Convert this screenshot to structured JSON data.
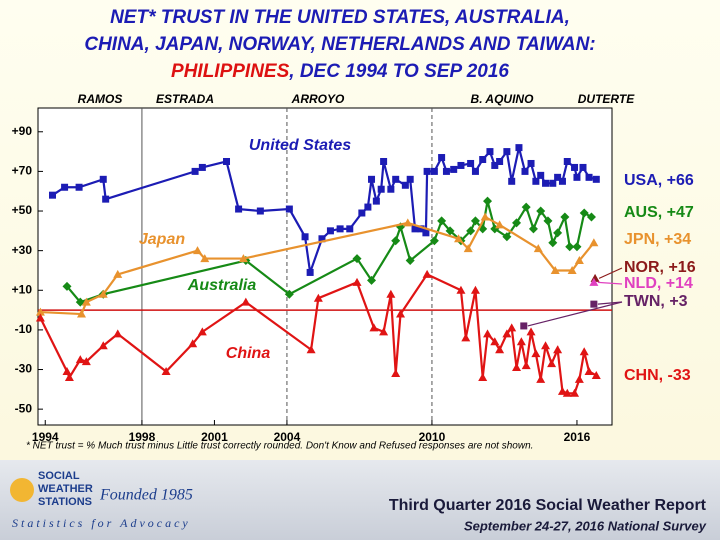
{
  "chart_data": {
    "type": "line",
    "title_lines": [
      "NET* TRUST IN THE UNITED STATES, AUSTRALIA,",
      "CHINA, JAPAN, NORWAY, NETHERLANDS AND TAIWAN:"
    ],
    "title_highlight": "PHILIPPINES",
    "title_tail": ", DEC 1994 TO SEP 2016",
    "eras": [
      "RAMOS",
      "ESTRADA",
      "ARROYO",
      "B. AQUINO",
      "DUTERTE"
    ],
    "dividers": [
      1998,
      2004,
      2010
    ],
    "reference_line": 0,
    "xlim": [
      1993.7,
      2017.45
    ],
    "xticks": [
      1994,
      1998,
      2001,
      2004,
      2010,
      2016
    ],
    "ylim": [
      -58,
      102
    ],
    "yticks": [
      {
        "value": 90,
        "label": "+90"
      },
      {
        "value": 70,
        "label": "+70"
      },
      {
        "value": 50,
        "label": "+50"
      },
      {
        "value": 30,
        "label": "+30"
      },
      {
        "value": 10,
        "label": "+10"
      },
      -10,
      -30,
      -50
    ],
    "series": [
      {
        "name": "United States",
        "label": "USA, +66",
        "color": "#1c1cb4",
        "marker": "square",
        "x": [
          1994.3,
          1994.8,
          1995.4,
          1996.4,
          1996.5,
          2000.2,
          2000.5,
          2001.5,
          2002.0,
          2002.9,
          2004.1,
          2004.75,
          2004.96,
          2005.45,
          2005.8,
          2006.2,
          2006.6,
          2007.1,
          2007.35,
          2007.5,
          2007.7,
          2007.9,
          2008.0,
          2008.3,
          2008.5,
          2008.9,
          2009.1,
          2009.3,
          2009.55,
          2009.75,
          2009.8,
          2010.1,
          2010.4,
          2010.6,
          2010.9,
          2011.2,
          2011.6,
          2011.8,
          2012.1,
          2012.4,
          2012.6,
          2012.8,
          2013.1,
          2013.3,
          2013.6,
          2013.85,
          2014.1,
          2014.3,
          2014.5,
          2014.7,
          2015.0,
          2015.2,
          2015.4,
          2015.6,
          2015.9,
          2016.0,
          2016.25,
          2016.5,
          2016.8
        ],
        "values": [
          58,
          62,
          62,
          66,
          56,
          70,
          72,
          75,
          51,
          50,
          51,
          37,
          19,
          36,
          40,
          41,
          41,
          49,
          52,
          66,
          55,
          61,
          75,
          61,
          66,
          63,
          66,
          41,
          41,
          39,
          70,
          70,
          77,
          70,
          71,
          73,
          74,
          70,
          76,
          80,
          73,
          75,
          80,
          65,
          82,
          70,
          74,
          65,
          68,
          64,
          64,
          67,
          65,
          75,
          72,
          67,
          72,
          67,
          66
        ]
      },
      {
        "name": "Australia",
        "label": "AUS, +47",
        "color": "#168a16",
        "marker": "diamond",
        "x": [
          1994.9,
          1995.45,
          1996.4,
          2002.3,
          2004.1,
          2006.9,
          2007.5,
          2008.5,
          2008.7,
          2009.1,
          2010.1,
          2010.4,
          2010.75,
          2011.2,
          2011.6,
          2011.8,
          2012.1,
          2012.3,
          2012.6,
          2013.1,
          2013.5,
          2013.9,
          2014.2,
          2014.5,
          2014.8,
          2015.0,
          2015.2,
          2015.5,
          2015.7,
          2016.0,
          2016.3,
          2016.6
        ],
        "values": [
          12,
          4,
          8,
          25,
          8,
          26,
          15,
          35,
          42,
          25,
          35,
          45,
          40,
          35,
          40,
          45,
          41,
          55,
          41,
          37,
          44,
          52,
          41,
          50,
          45,
          34,
          39,
          47,
          32,
          32,
          49,
          47
        ]
      },
      {
        "name": "Japan",
        "label": "JPN, +34",
        "color": "#e8922e",
        "marker": "triangle",
        "x": [
          1993.8,
          1995.5,
          1995.7,
          1996.4,
          1997.0,
          2000.3,
          2000.6,
          2002.2,
          2009.0,
          2011.1,
          2011.5,
          2012.2,
          2012.8,
          2014.4,
          2015.1,
          2015.8,
          2016.1,
          2016.7
        ],
        "values": [
          -1,
          -2,
          4,
          8,
          18,
          30,
          26,
          26,
          44,
          36,
          31,
          47,
          43,
          31,
          20,
          20,
          25,
          34
        ]
      },
      {
        "label": "NOR, +16",
        "color": "#8b1a1a",
        "marker": "triangle",
        "x": [
          2016.75
        ],
        "values": [
          16
        ]
      },
      {
        "label": "NLD, +14",
        "color": "#e040c0",
        "marker": "triangle",
        "x": [
          2016.7
        ],
        "values": [
          14
        ]
      },
      {
        "label": "TWN, +3",
        "color": "#662266",
        "marker": "square",
        "x": [
          2013.8,
          2016.7
        ],
        "values": [
          -8,
          3
        ]
      },
      {
        "name": "China",
        "label": "CHN, -33",
        "color": "#e01414",
        "marker": "triangle",
        "x": [
          1993.8,
          1994.9,
          1995.0,
          1995.45,
          1995.7,
          1996.4,
          1997.0,
          1999.0,
          2000.1,
          2000.5,
          2002.3,
          2005.0,
          2005.3,
          2006.9,
          2007.6,
          2008.0,
          2008.3,
          2008.5,
          2008.7,
          2009.8,
          2011.2,
          2011.4,
          2011.8,
          2012.1,
          2012.3,
          2012.6,
          2012.8,
          2013.1,
          2013.3,
          2013.5,
          2013.7,
          2013.9,
          2014.1,
          2014.3,
          2014.5,
          2014.7,
          2014.95,
          2015.2,
          2015.4,
          2015.6,
          2015.9,
          2016.1,
          2016.3,
          2016.5,
          2016.8
        ],
        "values": [
          -4,
          -31,
          -34,
          -25,
          -26,
          -18,
          -12,
          -31,
          -17,
          -11,
          4,
          -20,
          6,
          14,
          -9,
          -11,
          8,
          -32,
          -2,
          18,
          10,
          -14,
          10,
          -34,
          -12,
          -16,
          -20,
          -12,
          -9,
          -29,
          -16,
          -28,
          -11,
          -22,
          -35,
          -18,
          -27,
          -20,
          -41,
          -42,
          -42,
          -35,
          -21,
          -31,
          -33
        ]
      }
    ]
  },
  "footnote": "* NET trust = % Much trust minus Little trust correctly rounded. Don't Know and Refused responses are not shown.",
  "footer": {
    "logo_lines": [
      "SOCIAL",
      "WEATHER",
      "STATIONS"
    ],
    "founded": "Founded 1985",
    "tagline": "Statistics for Advocacy",
    "report": "Third Quarter 2016 Social Weather Report",
    "survey": "September 24-27, 2016 National Survey"
  }
}
